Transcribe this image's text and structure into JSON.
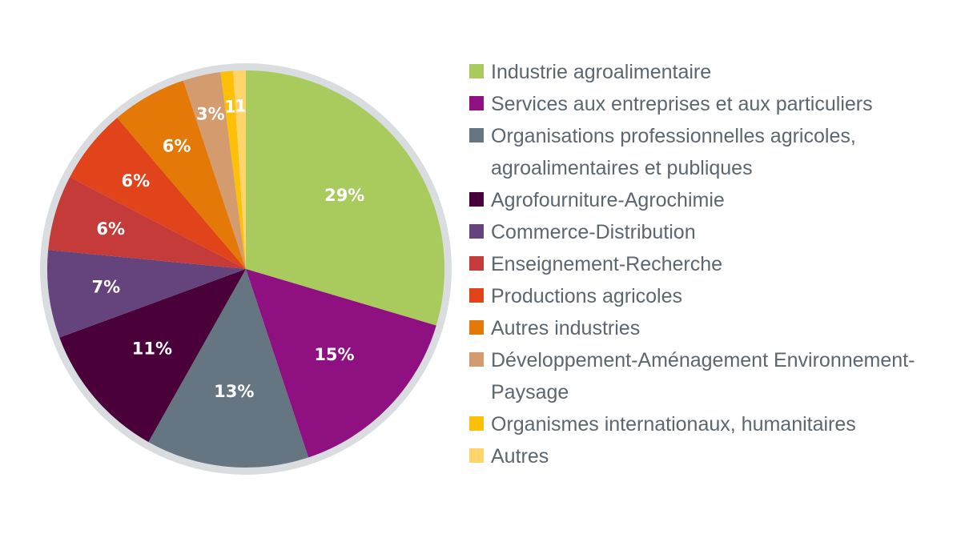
{
  "chart_data": {
    "type": "pie",
    "slices": [
      {
        "label": "Industrie agroalimentaire",
        "value": 29,
        "display": "29%",
        "color": "#a9cb5e"
      },
      {
        "label": "Services aux entreprises et aux particuliers",
        "value": 15,
        "display": "15%",
        "color": "#8e1081"
      },
      {
        "label": "Organisations professionnelles agricoles, agroalimentaires et publiques",
        "value": 13,
        "display": "13%",
        "color": "#667582"
      },
      {
        "label": "Agrofourniture-Agrochimie",
        "value": 11,
        "display": "11%",
        "color": "#4a0039"
      },
      {
        "label": "Commerce-Distribution",
        "value": 7,
        "display": "7%",
        "color": "#65437c"
      },
      {
        "label": "Enseignement-Recherche",
        "value": 6,
        "display": "6%",
        "color": "#c43b3a"
      },
      {
        "label": "Productions agricoles",
        "value": 6,
        "display": "6%",
        "color": "#e1431b"
      },
      {
        "label": "Autres industries",
        "value": 6,
        "display": "6%",
        "color": "#e47908"
      },
      {
        "label": "Développement-Aménagement Environnement-Paysage",
        "value": 3,
        "display": "3%",
        "color": "#d49c6e"
      },
      {
        "label": "Organismes internationaux, humanitaires",
        "value": 1,
        "display": "1",
        "color": "#fbc007"
      },
      {
        "label": "Autres",
        "value": 1,
        "display": "1",
        "color": "#ffd56b"
      }
    ],
    "legend_position": "right",
    "ring_color": "#d9dde0"
  }
}
